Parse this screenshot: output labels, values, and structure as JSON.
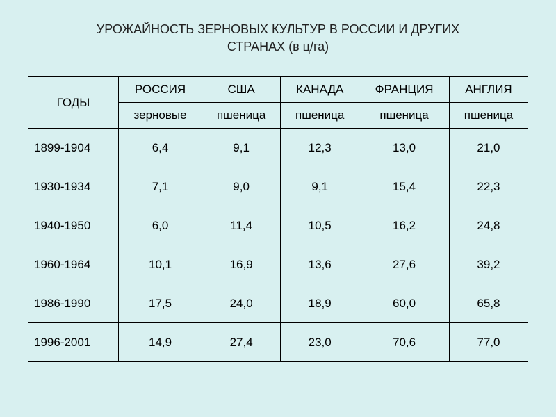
{
  "title_line1": "УРОЖАЙНОСТЬ ЗЕРНОВЫХ КУЛЬТУР В РОССИИ И ДРУГИХ",
  "title_line2": "СТРАНАХ (в ц/га)",
  "table": {
    "type": "table",
    "background_color": "#d8f0f0",
    "border_color": "#000000",
    "font_family": "Arial",
    "font_size": 17,
    "header_years": "ГОДЫ",
    "countries": [
      "РОССИЯ",
      "США",
      "КАНАДА",
      "ФРАНЦИЯ",
      "АНГЛИЯ"
    ],
    "subheaders": [
      "зерновые",
      "пшеница",
      "пшеница",
      "пшеница",
      "пшеница"
    ],
    "col_widths_pct": [
      18,
      16.4,
      16.4,
      16.4,
      16.4,
      16.4
    ],
    "col_align": [
      "left",
      "center",
      "center",
      "center",
      "center",
      "center"
    ],
    "rows": [
      {
        "year": "1899-1904",
        "values": [
          "6,4",
          "9,1",
          "12,3",
          "13,0",
          "21,0"
        ]
      },
      {
        "year": "1930-1934",
        "values": [
          "7,1",
          "9,0",
          "9,1",
          "15,4",
          "22,3"
        ]
      },
      {
        "year": "1940-1950",
        "values": [
          "6,0",
          "11,4",
          "10,5",
          "16,2",
          "24,8"
        ]
      },
      {
        "year": "1960-1964",
        "values": [
          "10,1",
          "16,9",
          "13,6",
          "27,6",
          "39,2"
        ]
      },
      {
        "year": "1986-1990",
        "values": [
          "17,5",
          "24,0",
          "18,9",
          "60,0",
          "65,8"
        ]
      },
      {
        "year": "1996-2001",
        "values": [
          "14,9",
          "27,4",
          "23,0",
          "70,6",
          "77,0"
        ]
      }
    ]
  }
}
